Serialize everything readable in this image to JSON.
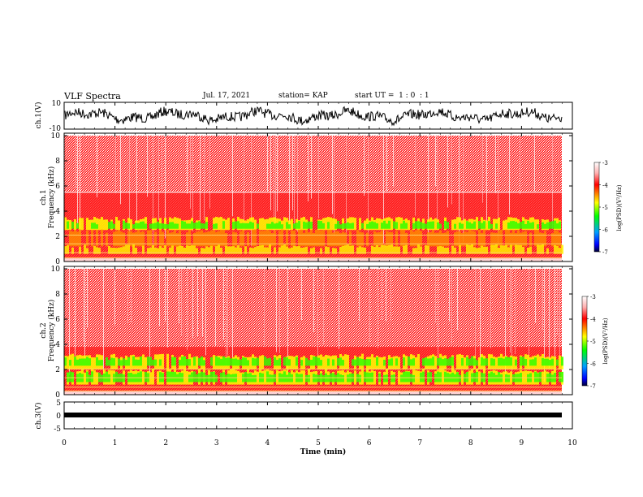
{
  "header": {
    "title": "VLF Spectra",
    "date": "Jul. 17, 2021",
    "station": "station= KAP",
    "start": "start UT =  1 : 0  : 1"
  },
  "chart_data": [
    {
      "type": "line",
      "ylabel": "ch.1(V)",
      "ylim": [
        -10,
        10
      ],
      "yticks": [
        "10",
        "-10"
      ],
      "xlim": [
        0,
        10
      ],
      "series_note": "dense oscillating waveform between approx -7 and 10"
    },
    {
      "type": "heatmap",
      "ylabel": "ch.1\nFrequency (kHz)",
      "ylim": [
        0,
        10
      ],
      "yticks": [
        "0",
        "2",
        "4",
        "6",
        "8",
        "10"
      ],
      "xlim": [
        0,
        9.8
      ],
      "colorbar": {
        "label": "log(PSD)(V²/Hz)",
        "range": [
          -7,
          -3
        ],
        "ticks": [
          "-3",
          "-4",
          "-5",
          "-6",
          "-7"
        ]
      }
    },
    {
      "type": "heatmap",
      "ylabel": "ch.2\nFrequency (kHz)",
      "ylim": [
        0,
        10
      ],
      "yticks": [
        "0",
        "2",
        "4",
        "6",
        "8",
        "10"
      ],
      "xlim": [
        0,
        9.8
      ],
      "colorbar": {
        "label": "log(PSD)(V²/Hz)",
        "range": [
          -7,
          -3
        ],
        "ticks": [
          "-3",
          "-4",
          "-5",
          "-6",
          "-7"
        ]
      }
    },
    {
      "type": "line",
      "ylabel": "ch.3(V)",
      "ylim": [
        -5,
        5
      ],
      "yticks": [
        "5",
        "0",
        "-5"
      ],
      "xlim": [
        0,
        10
      ],
      "series_note": "thick flat band near -0.5"
    }
  ],
  "xaxis": {
    "label": "Time (min)",
    "ticks": [
      "0",
      "1",
      "2",
      "3",
      "4",
      "5",
      "6",
      "7",
      "8",
      "9",
      "10"
    ]
  },
  "colors": {
    "high": "#ff0000",
    "mid": "#ffff00",
    "low": "#00ff00",
    "lowest": "#0000ff"
  }
}
